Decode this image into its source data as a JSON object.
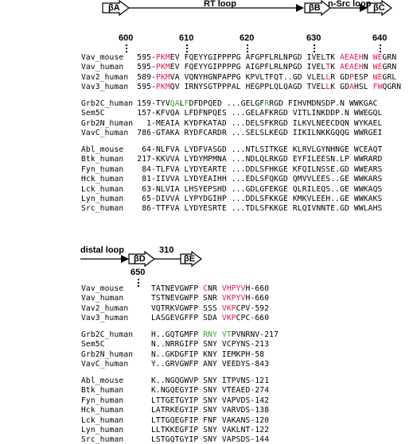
{
  "top_header": {
    "beta_a": "βA",
    "rt_loop": "RT loop",
    "beta_b": "βB",
    "n_src_loop": "n-Src loop",
    "beta_c": "βC",
    "positions": [
      "600",
      "610",
      "620",
      "630",
      "640"
    ]
  },
  "bottom_header": {
    "distal_loop": "distal loop",
    "beta_d": "βD",
    "three_ten": "310",
    "beta_e": "βE",
    "positions": [
      "650"
    ]
  },
  "colors": {
    "highlight_red": "#e8154b",
    "highlight_green": "#3ba33b"
  },
  "top_groups": [
    [
      {
        "name": "Vav_mouse",
        "start": "595-",
        "segs": [
          [
            "P",
            "r"
          ],
          [
            "KM",
            "r"
          ],
          [
            "EV FQEYYGIPPPPG AFGPFLRLNPGD IVELTK "
          ],
          [
            "AEAEH",
            "r"
          ],
          [
            "N "
          ],
          [
            "WE",
            "r"
          ],
          [
            "GRN"
          ]
        ]
      },
      {
        "name": "Vav_human",
        "start": "595-",
        "segs": [
          [
            "P",
            "r"
          ],
          [
            "KM",
            "r"
          ],
          [
            "EV FQEYYGIPPPPG AIGPFLRLNPGD IVEL"
          ],
          [
            "T",
            "r"
          ],
          [
            "K "
          ],
          [
            "AEAEH",
            "r"
          ],
          [
            "N "
          ],
          [
            "WE",
            "r"
          ],
          [
            "GRN"
          ]
        ]
      },
      {
        "name": "Vav2_human",
        "start": "589-",
        "segs": [
          [
            "P",
            "r"
          ],
          [
            "KM",
            "r"
          ],
          [
            "VA VQNYHGNPAPPG KPVLTFQT..GD VLEL"
          ],
          [
            "L",
            "r"
          ],
          [
            "R GD"
          ],
          [
            "P",
            "r"
          ],
          [
            "ESP "
          ],
          [
            "WE",
            "r"
          ],
          [
            "GRL"
          ]
        ]
      },
      {
        "name": "Vav3_human",
        "start": "595-",
        "segs": [
          [
            "P",
            "r"
          ],
          [
            "KM",
            "r"
          ],
          [
            "QV IRNYSGTPPPAL HEGPPLQLQAGD TVEL"
          ],
          [
            "L",
            "r"
          ],
          [
            "K GD"
          ],
          [
            "A",
            "r"
          ],
          [
            "HSL "
          ],
          [
            "FW",
            "r"
          ],
          [
            "QGRN"
          ]
        ]
      }
    ],
    [
      {
        "name": "Grb2C_human",
        "start": "159-",
        "segs": [
          [
            "TYV"
          ],
          [
            "QA",
            "g"
          ],
          [
            "L"
          ],
          [
            "F",
            "g"
          ],
          [
            "DFDPQED ...GELGF"
          ],
          [
            "R",
            "g"
          ],
          [
            "RGD FIHVMDNSDP.N WWKGAC"
          ]
        ]
      },
      {
        "name": "Sem5C",
        "start": "157-",
        "segs": [
          [
            "KFVQA LFDFNPQES ...GELAFKRGD VITLINKDDP.N WWEGQL"
          ]
        ]
      },
      {
        "name": "Grb2N_human",
        "start": "1-",
        "segs": [
          [
            "MEAIA KYDFKATAD ...DELSFKRGD ILKVLNEECDQN WYKAEL"
          ]
        ]
      },
      {
        "name": "VavC_human",
        "start": "786-",
        "segs": [
          [
            "GTAKA RYDFCARDR ...SELSLKEGD IIKILNKKGQQG WWRGEI"
          ]
        ]
      }
    ],
    [
      {
        "name": "Abl_mouse",
        "start": "64-",
        "segs": [
          [
            "NLFVA LYDFVASGD ...NTLSITKGE KLRVLGYNHNGE WCEAQT"
          ]
        ]
      },
      {
        "name": "Btk_human",
        "start": "217-",
        "segs": [
          [
            "KKVVA LYDYMPMNA ...NDLQLRKGD EYFILEESN.LP WWRARD"
          ]
        ]
      },
      {
        "name": "Fyn_human",
        "start": "84-",
        "segs": [
          [
            "TLFVA LYDYEARTE ...DDLSFHKGE KFQILNSSE.GD WWEARS"
          ]
        ]
      },
      {
        "name": "Hck_human",
        "start": "81-",
        "segs": [
          [
            "IIVVA LYDYEAIHH ...EDLSFQKGD QMVVLEES..GE WWKARS"
          ]
        ]
      },
      {
        "name": "Lck_human",
        "start": "63-",
        "segs": [
          [
            "NLVIA LHSYEPSHD ...GDLGFEKGE QLRILEQS..GE WWKAQS"
          ]
        ]
      },
      {
        "name": "Lyn_human",
        "start": "65-",
        "segs": [
          [
            "DIVVA LYPYDGIHP ...DDLSFKKGE KMKVLEEH..GE WWKAKS"
          ]
        ]
      },
      {
        "name": "Src_human",
        "start": "86-",
        "segs": [
          [
            "TTFVA LYDYESRTE ...TDLSFKKGE RLQIVNNTE.GD WWLAHS"
          ]
        ]
      }
    ]
  ],
  "bottom_groups": [
    [
      {
        "name": "Vav_mouse",
        "segs": [
          [
            "TATNEVGWFP "
          ],
          [
            "C",
            "r"
          ],
          [
            "NR "
          ],
          [
            "VHPYV",
            "r"
          ],
          [
            "H-660"
          ]
        ]
      },
      {
        "name": "Vav_human",
        "segs": [
          [
            "TSTNEVGWFP SNR "
          ],
          [
            "VKPYV",
            "r"
          ],
          [
            "H-660"
          ]
        ]
      },
      {
        "name": "Vav2_human",
        "segs": [
          [
            "VQTRKVGWFP SSS "
          ],
          [
            "VKP",
            "r"
          ],
          [
            "CPV-592"
          ]
        ]
      },
      {
        "name": "Vav3_human",
        "segs": [
          [
            "LASGEVGFFP SDA "
          ],
          [
            "VKP",
            "r"
          ],
          [
            "CPC-660"
          ]
        ]
      }
    ],
    [
      {
        "name": "Grb2C_human",
        "segs": [
          [
            "H..GQTGMFP "
          ],
          [
            "RNY",
            "g"
          ],
          [
            " "
          ],
          [
            "VT",
            "g"
          ],
          [
            "PVNRNV-217"
          ]
        ]
      },
      {
        "name": "Sem5C",
        "segs": [
          [
            "N..NRRGIFP SNY VCPYNS-213"
          ]
        ]
      },
      {
        "name": "Grb2N_human",
        "segs": [
          [
            "N..GKDGFIP KNY IEMKPH-58"
          ]
        ]
      },
      {
        "name": "VavC_human",
        "segs": [
          [
            "Y..GRVGWFP ANY VEEDYS-843"
          ]
        ]
      }
    ],
    [
      {
        "name": "Abl_mouse",
        "segs": [
          [
            "K..NGQGWVP SNY ITPVNS-121"
          ]
        ]
      },
      {
        "name": "Btk_human",
        "segs": [
          [
            "K.NGQEGYIP SNY VTEAED-274"
          ]
        ]
      },
      {
        "name": "Fyn_human",
        "segs": [
          [
            "LTTGETGYIP SNY VAPVDS-142"
          ]
        ]
      },
      {
        "name": "Hck_human",
        "segs": [
          [
            "LATRKEGYIP SNY VARVDS-138"
          ]
        ]
      },
      {
        "name": "Lck_human",
        "segs": [
          [
            "LTTGQEGFIP FNF VAKANS-120"
          ]
        ]
      },
      {
        "name": "Lyn_human",
        "segs": [
          [
            "LLTKKEGFIP SNY VAKLNT-122"
          ]
        ]
      },
      {
        "name": "Src_human",
        "segs": [
          [
            "LSTGQTGYIP SNY VAPSDS-144"
          ]
        ]
      }
    ]
  ]
}
